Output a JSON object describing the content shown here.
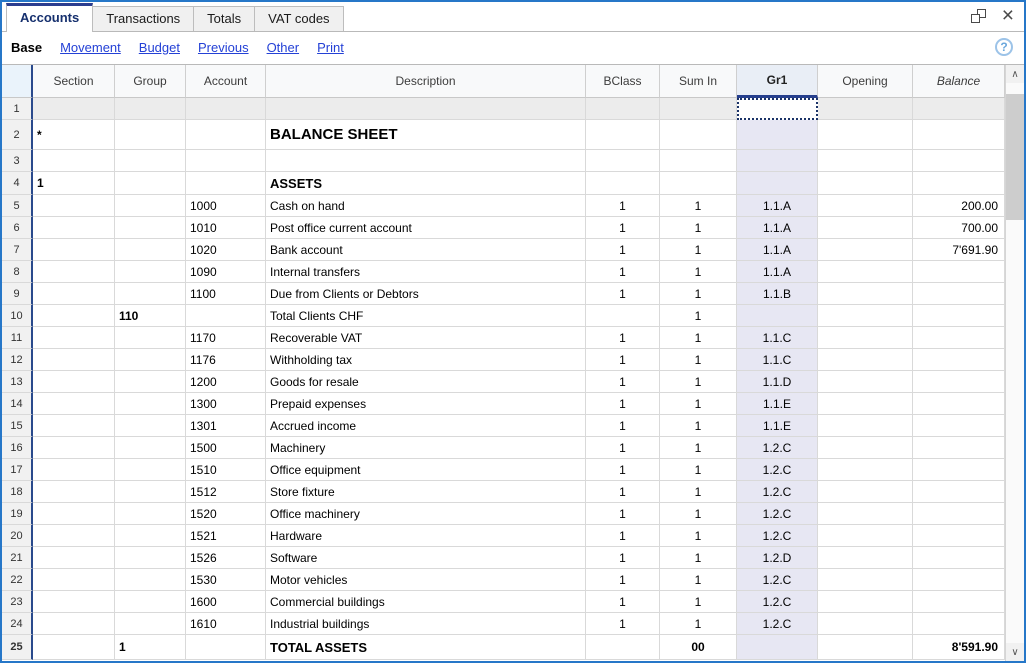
{
  "tabs": [
    {
      "label": "Accounts",
      "active": true
    },
    {
      "label": "Transactions",
      "active": false
    },
    {
      "label": "Totals",
      "active": false
    },
    {
      "label": "VAT codes",
      "active": false
    }
  ],
  "toolbar": {
    "base_label": "Base",
    "links": [
      "Movement",
      "Budget",
      "Previous",
      "Other",
      "Print"
    ]
  },
  "icons": {
    "help": "?",
    "close": "×",
    "scroll_up": "∧",
    "scroll_down": "∨"
  },
  "colors": {
    "window_border": "#2677c8",
    "accent_navy": "#2b3d8f",
    "gr1_column_bg": "#e7e7f3",
    "gr1_header_bg": "#e9eef6",
    "selected_row_bg": "#ececec",
    "link_blue": "#2441d6"
  },
  "table": {
    "columns": [
      {
        "key": "section",
        "label": "Section",
        "align": "left"
      },
      {
        "key": "group",
        "label": "Group",
        "align": "left"
      },
      {
        "key": "account",
        "label": "Account",
        "align": "left"
      },
      {
        "key": "description",
        "label": "Description",
        "align": "left"
      },
      {
        "key": "bclass",
        "label": "BClass",
        "align": "center"
      },
      {
        "key": "sumin",
        "label": "Sum In",
        "align": "center"
      },
      {
        "key": "gr1",
        "label": "Gr1",
        "align": "center",
        "selected": true
      },
      {
        "key": "opening",
        "label": "Opening",
        "align": "right"
      },
      {
        "key": "balance",
        "label": "Balance",
        "align": "right",
        "italic": true
      }
    ],
    "active_cell": {
      "row": "1",
      "col": "gr1"
    },
    "rows": [
      {
        "num": "1",
        "style": "selected"
      },
      {
        "num": "2",
        "style": "title",
        "section": "*",
        "description": "BALANCE SHEET"
      },
      {
        "num": "3",
        "style": "normal"
      },
      {
        "num": "4",
        "style": "header",
        "section": "1",
        "description": "ASSETS"
      },
      {
        "num": "5",
        "style": "normal",
        "account": "1000",
        "description": "Cash on hand",
        "bclass": "1",
        "sumin": "1",
        "gr1": "1.1.A",
        "balance": "200.00"
      },
      {
        "num": "6",
        "style": "normal",
        "account": "1010",
        "description": "Post office current account",
        "bclass": "1",
        "sumin": "1",
        "gr1": "1.1.A",
        "balance": "700.00"
      },
      {
        "num": "7",
        "style": "normal",
        "account": "1020",
        "description": "Bank account",
        "bclass": "1",
        "sumin": "1",
        "gr1": "1.1.A",
        "balance": "7'691.90"
      },
      {
        "num": "8",
        "style": "normal",
        "account": "1090",
        "description": "Internal transfers",
        "bclass": "1",
        "sumin": "1",
        "gr1": "1.1.A"
      },
      {
        "num": "9",
        "style": "normal",
        "account": "1100",
        "description": "Due from Clients or Debtors",
        "bclass": "1",
        "sumin": "1",
        "gr1": "1.1.B"
      },
      {
        "num": "10",
        "style": "normal",
        "group": "110",
        "description": "Total Clients CHF",
        "sumin": "1"
      },
      {
        "num": "11",
        "style": "normal",
        "account": "1170",
        "description": "Recoverable VAT",
        "bclass": "1",
        "sumin": "1",
        "gr1": "1.1.C"
      },
      {
        "num": "12",
        "style": "normal",
        "account": "1176",
        "description": "Withholding tax",
        "bclass": "1",
        "sumin": "1",
        "gr1": "1.1.C"
      },
      {
        "num": "13",
        "style": "normal",
        "account": "1200",
        "description": "Goods for resale",
        "bclass": "1",
        "sumin": "1",
        "gr1": "1.1.D"
      },
      {
        "num": "14",
        "style": "normal",
        "account": "1300",
        "description": "Prepaid expenses",
        "bclass": "1",
        "sumin": "1",
        "gr1": "1.1.E"
      },
      {
        "num": "15",
        "style": "normal",
        "account": "1301",
        "description": "Accrued income",
        "bclass": "1",
        "sumin": "1",
        "gr1": "1.1.E"
      },
      {
        "num": "16",
        "style": "normal",
        "account": "1500",
        "description": "Machinery",
        "bclass": "1",
        "sumin": "1",
        "gr1": "1.2.C"
      },
      {
        "num": "17",
        "style": "normal",
        "account": "1510",
        "description": "Office equipment",
        "bclass": "1",
        "sumin": "1",
        "gr1": "1.2.C"
      },
      {
        "num": "18",
        "style": "normal",
        "account": "1512",
        "description": "Store fixture",
        "bclass": "1",
        "sumin": "1",
        "gr1": "1.2.C"
      },
      {
        "num": "19",
        "style": "normal",
        "account": "1520",
        "description": "Office machinery",
        "bclass": "1",
        "sumin": "1",
        "gr1": "1.2.C"
      },
      {
        "num": "20",
        "style": "normal",
        "account": "1521",
        "description": "Hardware",
        "bclass": "1",
        "sumin": "1",
        "gr1": "1.2.C"
      },
      {
        "num": "21",
        "style": "normal",
        "account": "1526",
        "description": "Software",
        "bclass": "1",
        "sumin": "1",
        "gr1": "1.2.D"
      },
      {
        "num": "22",
        "style": "normal",
        "account": "1530",
        "description": "Motor vehicles",
        "bclass": "1",
        "sumin": "1",
        "gr1": "1.2.C"
      },
      {
        "num": "23",
        "style": "normal",
        "account": "1600",
        "description": "Commercial buildings",
        "bclass": "1",
        "sumin": "1",
        "gr1": "1.2.C"
      },
      {
        "num": "24",
        "style": "normal",
        "account": "1610",
        "description": "Industrial buildings",
        "bclass": "1",
        "sumin": "1",
        "gr1": "1.2.C"
      },
      {
        "num": "25",
        "style": "total",
        "group": "1",
        "description": "TOTAL ASSETS",
        "sumin": "00",
        "balance": "8'591.90"
      }
    ]
  }
}
